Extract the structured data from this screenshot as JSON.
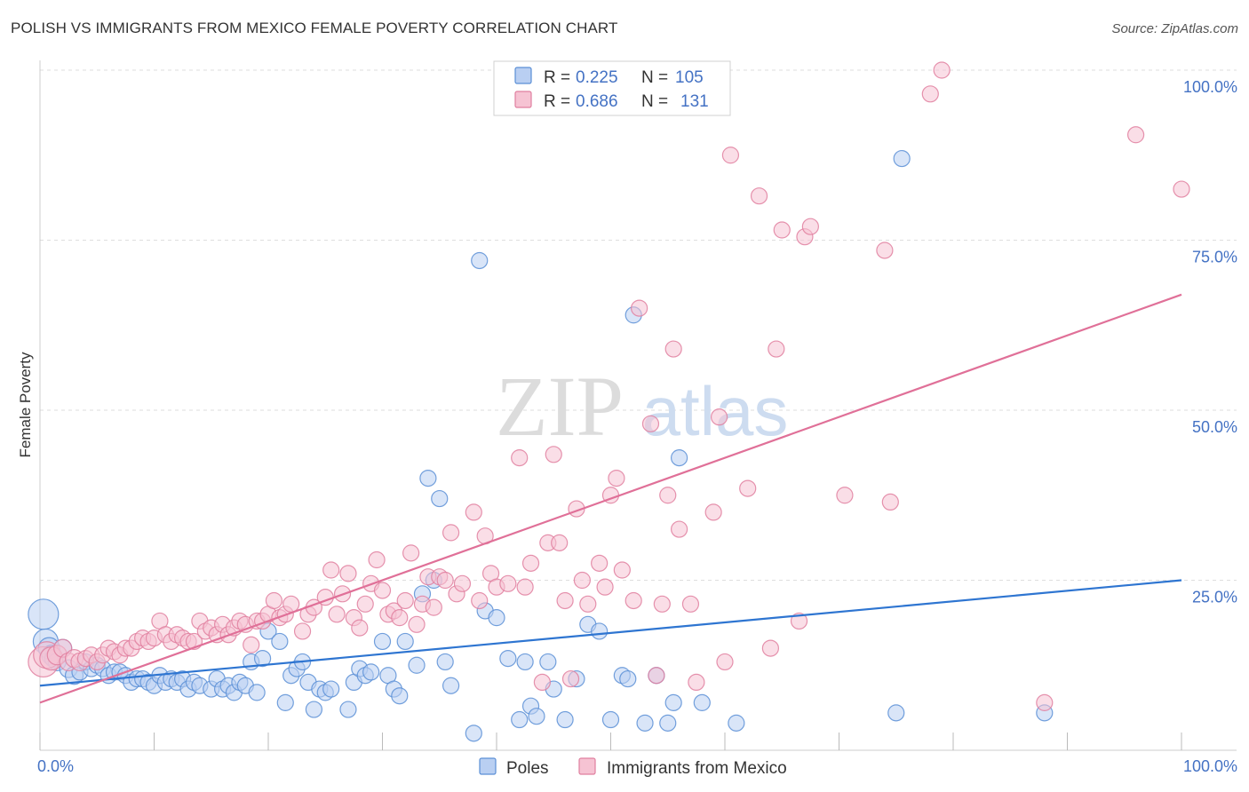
{
  "title": "POLISH VS IMMIGRANTS FROM MEXICO FEMALE POVERTY CORRELATION CHART",
  "source": "Source: ZipAtlas.com",
  "watermark": {
    "zip": "ZIP",
    "atlas": "atlas"
  },
  "colors": {
    "blue": "#5b8fd6",
    "blue_fill": "#b9cff2",
    "blue_line": "#2e75d1",
    "pink": "#e07f9f",
    "pink_fill": "#f6c3d3",
    "pink_line": "#e07098",
    "tick_label": "#4472c4"
  },
  "chart_data": {
    "type": "scatter",
    "ylabel": "Female Poverty",
    "xlim": [
      0,
      100
    ],
    "ylim": [
      0,
      100
    ],
    "x_tick_labels": [
      {
        "value": 0,
        "label": "0.0%"
      },
      {
        "value": 100,
        "label": "100.0%"
      }
    ],
    "y_tick_labels": [
      {
        "value": 25,
        "label": "25.0%"
      },
      {
        "value": 50,
        "label": "50.0%"
      },
      {
        "value": 75,
        "label": "75.0%"
      },
      {
        "value": 100,
        "label": "100.0%"
      }
    ],
    "grid": "horizontal dashed",
    "legend_position": "top-center",
    "stats": [
      {
        "r_label": "R =",
        "r": "0.225",
        "n_label": "N =",
        "n": "105"
      },
      {
        "r_label": "R =",
        "r": "0.686",
        "n_label": "N =",
        "n": "131"
      }
    ],
    "series": [
      {
        "name": "Poles",
        "color": "#5b8fd6",
        "trend": {
          "x": [
            0,
            100
          ],
          "y": [
            9.5,
            25.0
          ]
        },
        "points": [
          [
            0.3,
            20,
            14
          ],
          [
            0.5,
            16,
            11
          ],
          [
            0.8,
            15,
            9
          ],
          [
            1,
            14,
            8
          ],
          [
            1.2,
            13.5,
            7
          ],
          [
            1.5,
            13,
            7
          ],
          [
            2,
            15,
            7
          ],
          [
            2.5,
            12,
            7
          ],
          [
            3,
            11,
            7
          ],
          [
            3.5,
            11.5,
            6
          ],
          [
            4,
            13,
            6
          ],
          [
            4.5,
            12,
            6
          ],
          [
            5,
            12.5,
            6
          ],
          [
            5.5,
            12,
            6
          ],
          [
            6,
            11,
            6
          ],
          [
            6.5,
            11.5,
            6
          ],
          [
            7,
            11.5,
            6
          ],
          [
            7.5,
            11,
            6
          ],
          [
            8,
            10,
            6
          ],
          [
            8.5,
            10.5,
            6
          ],
          [
            9,
            10.5,
            6
          ],
          [
            9.5,
            10,
            6
          ],
          [
            10,
            9.5,
            6
          ],
          [
            10.5,
            11,
            6
          ],
          [
            11,
            10,
            6
          ],
          [
            11.5,
            10.5,
            6
          ],
          [
            12,
            10,
            6
          ],
          [
            12.5,
            10.5,
            6
          ],
          [
            13,
            9,
            6
          ],
          [
            13.5,
            10,
            6
          ],
          [
            14,
            9.5,
            6
          ],
          [
            15,
            9,
            6
          ],
          [
            15.5,
            10.5,
            6
          ],
          [
            16,
            9,
            6
          ],
          [
            16.5,
            9.5,
            6
          ],
          [
            17,
            8.5,
            6
          ],
          [
            17.5,
            10,
            6
          ],
          [
            18,
            9.5,
            6
          ],
          [
            18.5,
            13,
            6
          ],
          [
            19,
            8.5,
            6
          ],
          [
            19.5,
            13.5,
            6
          ],
          [
            20,
            17.5,
            6
          ],
          [
            21,
            16,
            6
          ],
          [
            21.5,
            7,
            6
          ],
          [
            22,
            11,
            6
          ],
          [
            22.5,
            12,
            6
          ],
          [
            23,
            13,
            6
          ],
          [
            23.5,
            10,
            6
          ],
          [
            24,
            6,
            6
          ],
          [
            24.5,
            9,
            6
          ],
          [
            25,
            8.5,
            6
          ],
          [
            25.5,
            9,
            6
          ],
          [
            27,
            6,
            6
          ],
          [
            27.5,
            10,
            6
          ],
          [
            28,
            12,
            6
          ],
          [
            28.5,
            11,
            6
          ],
          [
            29,
            11.5,
            6
          ],
          [
            30,
            16,
            6
          ],
          [
            30.5,
            11,
            6
          ],
          [
            31,
            9,
            6
          ],
          [
            31.5,
            8,
            6
          ],
          [
            32,
            16,
            6
          ],
          [
            33,
            12.5,
            6
          ],
          [
            33.5,
            23,
            6
          ],
          [
            34,
            40,
            6
          ],
          [
            34.5,
            25,
            6
          ],
          [
            35,
            37,
            6
          ],
          [
            35.5,
            13,
            6
          ],
          [
            36,
            9.5,
            6
          ],
          [
            38,
            2.5,
            6
          ],
          [
            38.5,
            72,
            6
          ],
          [
            39,
            20.5,
            6
          ],
          [
            40,
            19.5,
            6
          ],
          [
            41,
            13.5,
            6
          ],
          [
            42,
            4.5,
            6
          ],
          [
            42.5,
            13,
            6
          ],
          [
            43,
            6.5,
            6
          ],
          [
            43.5,
            5,
            6
          ],
          [
            44.5,
            13,
            6
          ],
          [
            45,
            9,
            6
          ],
          [
            46,
            4.5,
            6
          ],
          [
            47,
            10.5,
            6
          ],
          [
            48,
            18.5,
            6
          ],
          [
            49,
            17.5,
            6
          ],
          [
            50,
            4.5,
            6
          ],
          [
            51,
            11,
            6
          ],
          [
            51.5,
            10.5,
            6
          ],
          [
            52,
            64,
            6
          ],
          [
            53,
            4,
            6
          ],
          [
            54,
            11,
            6
          ],
          [
            55,
            4,
            6
          ],
          [
            55.5,
            7,
            6
          ],
          [
            56,
            43,
            6
          ],
          [
            58,
            7,
            6
          ],
          [
            61,
            4,
            6
          ],
          [
            75.5,
            87,
            6
          ],
          [
            75,
            5.5,
            6
          ],
          [
            88,
            5.5,
            6
          ]
        ]
      },
      {
        "name": "Immigrants from Mexico",
        "color": "#e07f9f",
        "trend": {
          "x": [
            0,
            100
          ],
          "y": [
            7.0,
            67.0
          ]
        },
        "points": [
          [
            0.3,
            13,
            14
          ],
          [
            0.6,
            14,
            12
          ],
          [
            1,
            13.5,
            10
          ],
          [
            1.5,
            14,
            8
          ],
          [
            2,
            15,
            7
          ],
          [
            2.5,
            13,
            7
          ],
          [
            3,
            13.5,
            7
          ],
          [
            3.5,
            13,
            7
          ],
          [
            4,
            13.5,
            6
          ],
          [
            4.5,
            14,
            6
          ],
          [
            5,
            13,
            6
          ],
          [
            5.5,
            14,
            6
          ],
          [
            6,
            15,
            6
          ],
          [
            6.5,
            14.5,
            6
          ],
          [
            7,
            14,
            6
          ],
          [
            7.5,
            15,
            6
          ],
          [
            8,
            15,
            6
          ],
          [
            8.5,
            16,
            6
          ],
          [
            9,
            16.5,
            6
          ],
          [
            9.5,
            16,
            6
          ],
          [
            10,
            16.5,
            6
          ],
          [
            10.5,
            19,
            6
          ],
          [
            11,
            17,
            6
          ],
          [
            11.5,
            16,
            6
          ],
          [
            12,
            17,
            6
          ],
          [
            12.5,
            16.5,
            6
          ],
          [
            13,
            16,
            6
          ],
          [
            13.5,
            16,
            6
          ],
          [
            14,
            19,
            6
          ],
          [
            14.5,
            17.5,
            6
          ],
          [
            15,
            18,
            6
          ],
          [
            15.5,
            17,
            6
          ],
          [
            16,
            18.5,
            6
          ],
          [
            16.5,
            17,
            6
          ],
          [
            17,
            18,
            6
          ],
          [
            17.5,
            19,
            6
          ],
          [
            18,
            18.5,
            6
          ],
          [
            18.5,
            15.5,
            6
          ],
          [
            19,
            19,
            6
          ],
          [
            19.5,
            19,
            6
          ],
          [
            20,
            20,
            6
          ],
          [
            20.5,
            22,
            6
          ],
          [
            21,
            19.5,
            6
          ],
          [
            21.5,
            20,
            6
          ],
          [
            22,
            21.5,
            6
          ],
          [
            23,
            17.5,
            6
          ],
          [
            23.5,
            20,
            6
          ],
          [
            24,
            21,
            6
          ],
          [
            25,
            22.5,
            6
          ],
          [
            25.5,
            26.5,
            6
          ],
          [
            26,
            20,
            6
          ],
          [
            26.5,
            23,
            6
          ],
          [
            27,
            26,
            6
          ],
          [
            27.5,
            19.5,
            6
          ],
          [
            28,
            18,
            6
          ],
          [
            28.5,
            21.5,
            6
          ],
          [
            29,
            24.5,
            6
          ],
          [
            29.5,
            28,
            6
          ],
          [
            30,
            23.5,
            6
          ],
          [
            30.5,
            20,
            6
          ],
          [
            31,
            20.5,
            6
          ],
          [
            31.5,
            19.5,
            6
          ],
          [
            32,
            22,
            6
          ],
          [
            32.5,
            29,
            6
          ],
          [
            33,
            18.5,
            6
          ],
          [
            33.5,
            21.5,
            6
          ],
          [
            34,
            25.5,
            6
          ],
          [
            34.5,
            21,
            6
          ],
          [
            35,
            25.5,
            6
          ],
          [
            35.5,
            25,
            6
          ],
          [
            36,
            32,
            6
          ],
          [
            36.5,
            23,
            6
          ],
          [
            37,
            24.5,
            6
          ],
          [
            38,
            35,
            6
          ],
          [
            38.5,
            22,
            6
          ],
          [
            39,
            31.5,
            6
          ],
          [
            39.5,
            26,
            6
          ],
          [
            40,
            24,
            6
          ],
          [
            41,
            24.5,
            6
          ],
          [
            42,
            43,
            6
          ],
          [
            42.5,
            24,
            6
          ],
          [
            43,
            27.5,
            6
          ],
          [
            44,
            10,
            6
          ],
          [
            44.5,
            30.5,
            6
          ],
          [
            45,
            43.5,
            6
          ],
          [
            45.5,
            30.5,
            6
          ],
          [
            46,
            22,
            6
          ],
          [
            46.5,
            10.5,
            6
          ],
          [
            47,
            35.5,
            6
          ],
          [
            47.5,
            25,
            6
          ],
          [
            48,
            21.5,
            6
          ],
          [
            49,
            27.5,
            6
          ],
          [
            49.5,
            24,
            6
          ],
          [
            50,
            37.5,
            6
          ],
          [
            50.5,
            40,
            6
          ],
          [
            51,
            26.5,
            6
          ],
          [
            52,
            22,
            6
          ],
          [
            52.5,
            65,
            6
          ],
          [
            53.5,
            48,
            6
          ],
          [
            54,
            11,
            6
          ],
          [
            54.5,
            21.5,
            6
          ],
          [
            55,
            37.5,
            6
          ],
          [
            55.5,
            59,
            6
          ],
          [
            56,
            32.5,
            6
          ],
          [
            57,
            21.5,
            6
          ],
          [
            57.5,
            10,
            6
          ],
          [
            59,
            35,
            6
          ],
          [
            59.5,
            49,
            6
          ],
          [
            60,
            13,
            6
          ],
          [
            60.5,
            87.5,
            6
          ],
          [
            62,
            38.5,
            6
          ],
          [
            63,
            81.5,
            6
          ],
          [
            64,
            15,
            6
          ],
          [
            64.5,
            59,
            6
          ],
          [
            65,
            76.5,
            6
          ],
          [
            66.5,
            19,
            6
          ],
          [
            67,
            75.5,
            6
          ],
          [
            67.5,
            77,
            6
          ],
          [
            70.5,
            37.5,
            6
          ],
          [
            74,
            73.5,
            6
          ],
          [
            74.5,
            36.5,
            6
          ],
          [
            78,
            96.5,
            6
          ],
          [
            79,
            100,
            6
          ],
          [
            88,
            7,
            6
          ],
          [
            96,
            90.5,
            6
          ],
          [
            100,
            82.5,
            6
          ]
        ]
      }
    ]
  }
}
